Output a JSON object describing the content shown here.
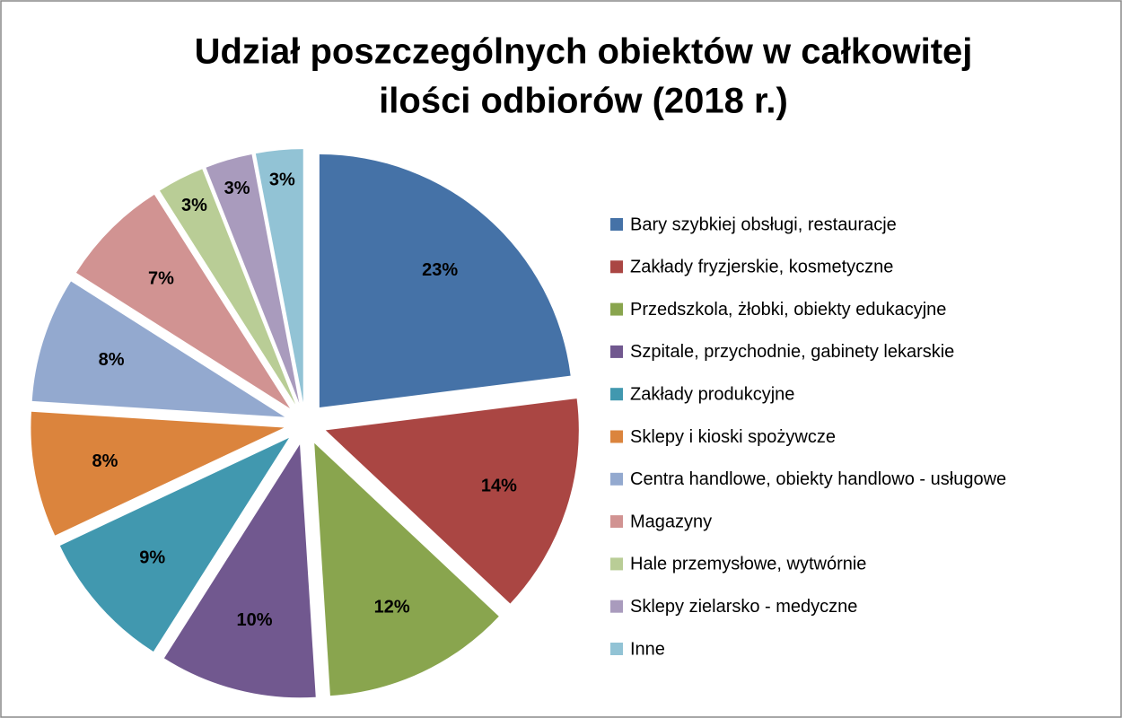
{
  "chart_data": {
    "type": "pie",
    "title": [
      "Udział poszczególnych obiektów  w całkowitej",
      "ilości odbiorów (2018 r.)"
    ],
    "categories": [
      "Bary szybkiej obsługi, restauracje",
      "Zakłady fryzjerskie, kosmetyczne",
      "Przedszkola, żłobki, obiekty edukacyjne",
      "Szpitale, przychodnie, gabinety lekarskie",
      "Zakłady produkcyjne",
      "Sklepy i kioski spożywcze",
      "Centra handlowe, obiekty handlowo - usługowe",
      "Magazyny",
      "Hale przemysłowe, wytwórnie",
      "Sklepy zielarsko - medyczne",
      "Inne"
    ],
    "values": [
      23,
      14,
      12,
      10,
      9,
      8,
      8,
      7,
      3,
      3,
      3
    ],
    "value_labels": [
      "23%",
      "14%",
      "12%",
      "10%",
      "9%",
      "8%",
      "8%",
      "7%",
      "3%",
      "3%",
      "3%"
    ],
    "colors": [
      "#4572a7",
      "#aa4643",
      "#89a54e",
      "#71588f",
      "#4198af",
      "#db843d",
      "#93a9cf",
      "#d19392",
      "#b9cd96",
      "#a99bbd",
      "#92c3d5"
    ],
    "legend": "right"
  }
}
